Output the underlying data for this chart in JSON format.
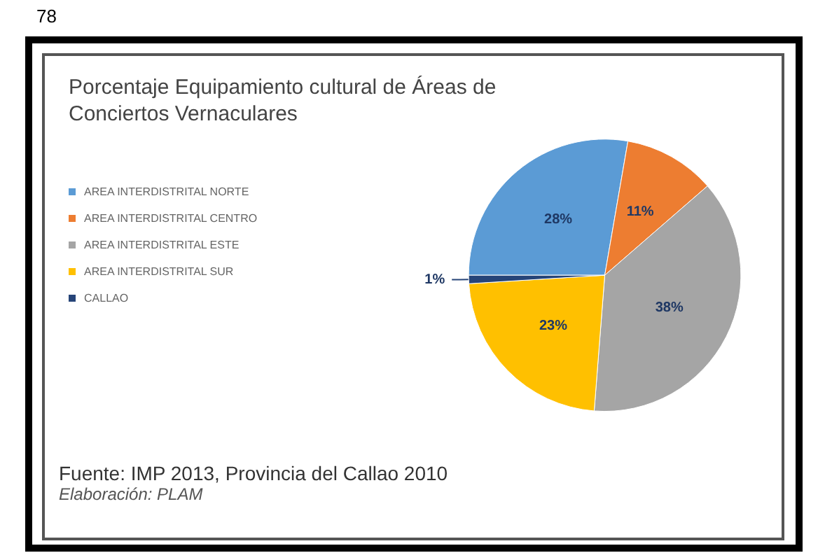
{
  "chart_data": {
    "type": "pie",
    "title": "Porcentaje Equipamiento cultural de Áreas de Conciertos Vernaculares",
    "categories": [
      "AREA INTERDISTRITAL NORTE",
      "AREA INTERDISTRITAL CENTRO",
      "AREA INTERDISTRITAL ESTE",
      "AREA INTERDISTRITAL SUR",
      "CALLAO"
    ],
    "values": [
      28,
      11,
      38,
      23,
      1
    ],
    "colors": [
      "#5b9bd5",
      "#ed7d31",
      "#a5a5a5",
      "#ffc000",
      "#264478"
    ],
    "value_labels": [
      "28%",
      "11%",
      "38%",
      "23%",
      "1%"
    ],
    "legend": "left",
    "annotations": [
      "78",
      "Fuente: IMP 2013, Provincia del Callao 2010",
      "Elaboración: PLAM"
    ]
  }
}
